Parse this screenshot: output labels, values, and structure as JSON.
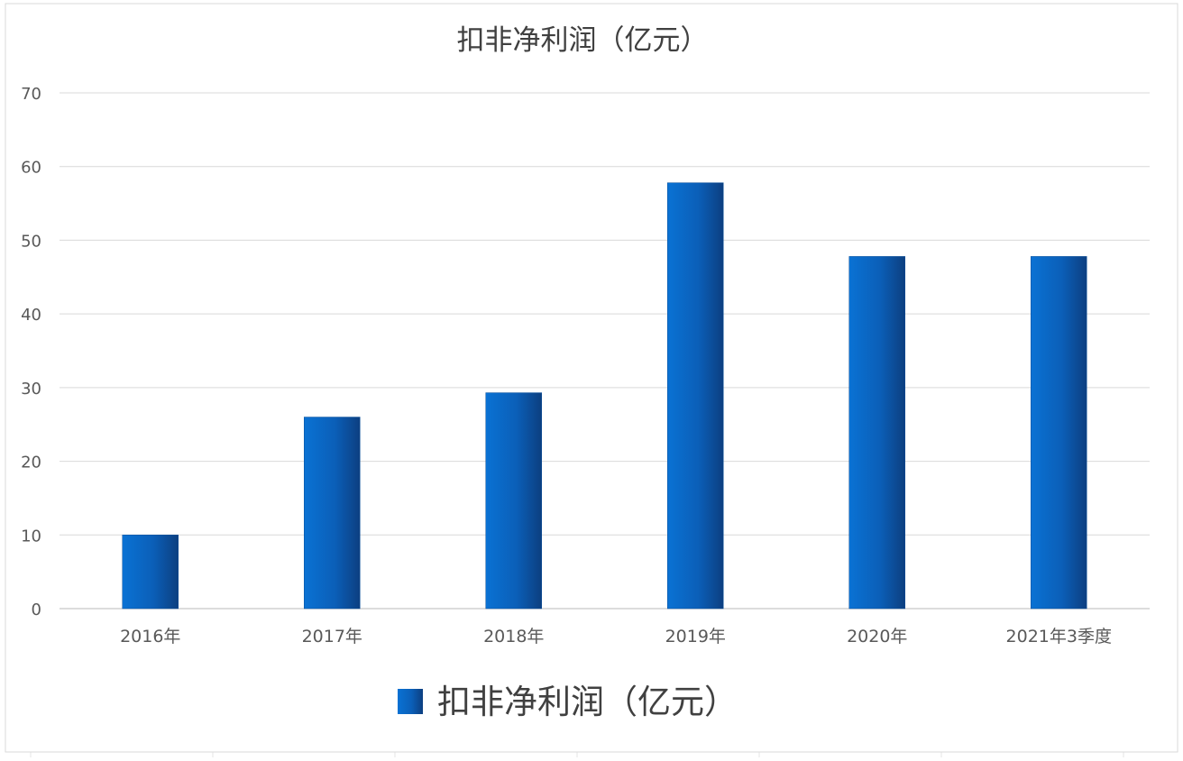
{
  "chart_data": {
    "type": "bar",
    "title": "扣非净利润（亿元）",
    "categories": [
      "2016年",
      "2017年",
      "2018年",
      "2019年",
      "2020年",
      "2021年3季度"
    ],
    "series": [
      {
        "name": "扣非净利润（亿元）",
        "values": [
          10,
          26,
          29.3,
          57.8,
          47.8,
          47.8
        ],
        "color": "#1565c0"
      }
    ],
    "xlabel": "",
    "ylabel": "",
    "ylim": [
      0,
      70
    ],
    "yticks": [
      0,
      10,
      20,
      30,
      40,
      50,
      60,
      70
    ],
    "grid": true,
    "legend_position": "bottom"
  }
}
